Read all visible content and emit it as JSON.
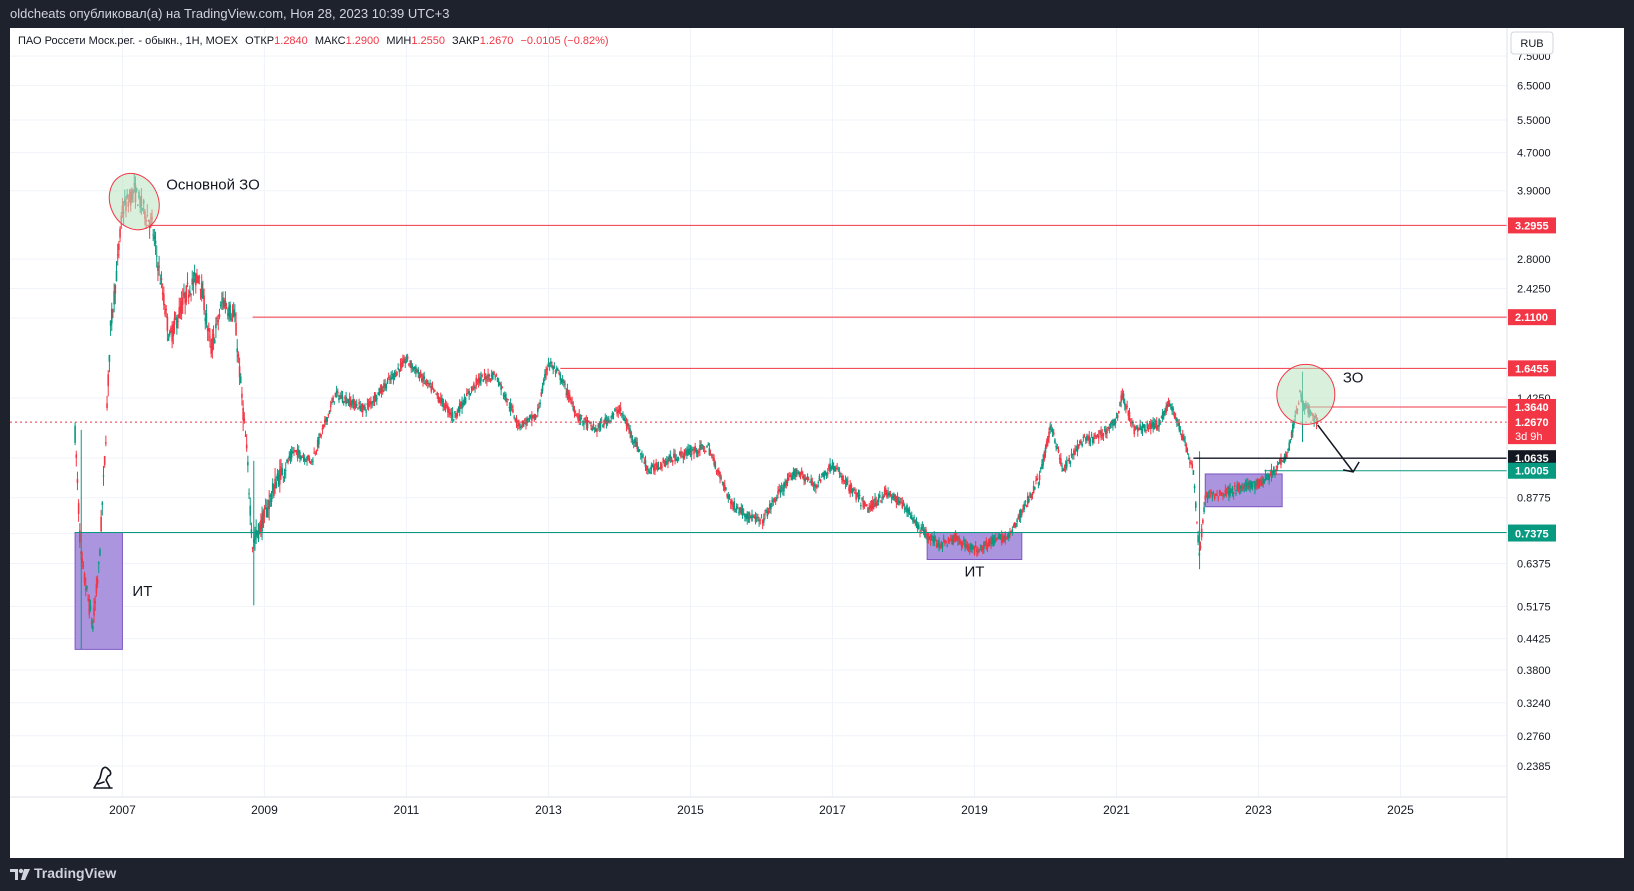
{
  "header": {
    "published": "oldcheats опубликовал(а) на TradingView.com, Ноя 28, 2023 10:39 UTC+3"
  },
  "legend": {
    "symbol": "ПАО Россети Моск.рег. - обыкн., 1Н, MOEX",
    "open_label": "ОТКР",
    "open": "1.2840",
    "high_label": "МАКС",
    "high": "1.2900",
    "low_label": "МИН",
    "low": "1.2550",
    "close_label": "ЗАКР",
    "close": "1.2670",
    "change": "−0.0105 (−0.82%)"
  },
  "currency": "RUB",
  "brand": "TradingView",
  "colors": {
    "resistance": "#f23645",
    "support": "#089981",
    "black_level": "#131722",
    "zone_fill": "#9c82d9",
    "ellipse_fill": "#b9e4c0",
    "candle_up": "#089981",
    "candle_down": "#f23645",
    "grid": "#f0f3fa"
  },
  "chart_data": {
    "type": "candlestick",
    "scale": "log",
    "x_range": [
      "2005-06",
      "2026-07"
    ],
    "y_range": [
      0.205,
      8.6
    ],
    "x_ticks": [
      {
        "label": "2007",
        "date": "2007-01"
      },
      {
        "label": "2009",
        "date": "2009-01"
      },
      {
        "label": "2011",
        "date": "2011-01"
      },
      {
        "label": "2013",
        "date": "2013-01"
      },
      {
        "label": "2015",
        "date": "2015-01"
      },
      {
        "label": "2017",
        "date": "2017-01"
      },
      {
        "label": "2019",
        "date": "2019-01"
      },
      {
        "label": "2021",
        "date": "2021-01"
      },
      {
        "label": "2023",
        "date": "2023-01"
      },
      {
        "label": "2025",
        "date": "2025-01"
      }
    ],
    "y_ticks": [
      "7.5000",
      "6.5000",
      "5.5000",
      "4.7000",
      "3.9000",
      "2.8000",
      "2.4250",
      "2.1000",
      "1.4250",
      "1.0635",
      "0.8775",
      "0.7375",
      "0.6375",
      "0.5175",
      "0.4425",
      "0.3800",
      "0.3240",
      "0.2760",
      "0.2385"
    ],
    "price_path": [
      [
        "2006-05",
        1.2
      ],
      [
        "2006-06",
        0.65
      ],
      [
        "2006-08",
        0.47
      ],
      [
        "2006-09",
        0.62
      ],
      [
        "2006-10",
        1.05
      ],
      [
        "2006-11",
        2.0
      ],
      [
        "2006-12",
        2.6
      ],
      [
        "2007-01",
        3.55
      ],
      [
        "2007-03",
        3.9
      ],
      [
        "2007-06",
        3.3
      ],
      [
        "2007-09",
        1.9
      ],
      [
        "2007-12",
        2.4
      ],
      [
        "2008-02",
        2.6
      ],
      [
        "2008-04",
        1.8
      ],
      [
        "2008-06",
        2.3
      ],
      [
        "2008-08",
        2.1
      ],
      [
        "2008-10",
        1.1
      ],
      [
        "2008-11",
        0.7
      ],
      [
        "2009-01",
        0.8
      ],
      [
        "2009-03",
        0.95
      ],
      [
        "2009-06",
        1.1
      ],
      [
        "2009-09",
        1.05
      ],
      [
        "2010-01",
        1.45
      ],
      [
        "2010-06",
        1.35
      ],
      [
        "2010-11",
        1.6
      ],
      [
        "2011-01",
        1.72
      ],
      [
        "2011-06",
        1.45
      ],
      [
        "2011-09",
        1.3
      ],
      [
        "2012-01",
        1.55
      ],
      [
        "2012-04",
        1.6
      ],
      [
        "2012-08",
        1.25
      ],
      [
        "2012-11",
        1.3
      ],
      [
        "2013-01",
        1.7
      ],
      [
        "2013-03",
        1.58
      ],
      [
        "2013-06",
        1.3
      ],
      [
        "2013-09",
        1.22
      ],
      [
        "2014-01",
        1.35
      ],
      [
        "2014-06",
        1.0
      ],
      [
        "2014-09",
        1.05
      ],
      [
        "2015-01",
        1.1
      ],
      [
        "2015-04",
        1.12
      ],
      [
        "2015-08",
        0.85
      ],
      [
        "2015-11",
        0.8
      ],
      [
        "2016-01",
        0.78
      ],
      [
        "2016-04",
        0.9
      ],
      [
        "2016-07",
        1.0
      ],
      [
        "2016-10",
        0.93
      ],
      [
        "2017-01",
        1.03
      ],
      [
        "2017-04",
        0.92
      ],
      [
        "2017-07",
        0.83
      ],
      [
        "2017-10",
        0.9
      ],
      [
        "2018-01",
        0.85
      ],
      [
        "2018-04",
        0.75
      ],
      [
        "2018-07",
        0.7
      ],
      [
        "2018-10",
        0.72
      ],
      [
        "2019-01",
        0.68
      ],
      [
        "2019-04",
        0.71
      ],
      [
        "2019-07",
        0.73
      ],
      [
        "2019-09",
        0.82
      ],
      [
        "2019-12",
        0.97
      ],
      [
        "2020-02",
        1.25
      ],
      [
        "2020-04",
        1.0
      ],
      [
        "2020-07",
        1.15
      ],
      [
        "2020-10",
        1.18
      ],
      [
        "2021-01",
        1.28
      ],
      [
        "2021-02",
        1.45
      ],
      [
        "2021-04",
        1.22
      ],
      [
        "2021-08",
        1.25
      ],
      [
        "2021-10",
        1.4
      ],
      [
        "2021-12",
        1.2
      ],
      [
        "2022-02",
        1.0
      ],
      [
        "2022-03",
        0.66
      ],
      [
        "2022-04",
        0.88
      ],
      [
        "2022-07",
        0.9
      ],
      [
        "2022-10",
        0.92
      ],
      [
        "2023-01",
        0.94
      ],
      [
        "2023-03",
        0.98
      ],
      [
        "2023-06",
        1.1
      ],
      [
        "2023-08",
        1.45
      ],
      [
        "2023-09",
        1.36
      ],
      [
        "2023-11",
        1.267
      ]
    ],
    "horizontal_levels": [
      {
        "value": 3.2955,
        "label": "3.2955",
        "color": "red",
        "from": "2007-05"
      },
      {
        "value": 2.11,
        "label": "2.1100",
        "color": "red",
        "from": "2008-11"
      },
      {
        "value": 1.6455,
        "label": "1.6455",
        "color": "red",
        "from": "2013-03"
      },
      {
        "value": 1.364,
        "label": "1.3640",
        "color": "red",
        "from": "2023-09"
      },
      {
        "value": 1.0635,
        "label": "1.0635",
        "color": "black",
        "from": "2022-02"
      },
      {
        "value": 1.0005,
        "label": "1.0005",
        "color": "green",
        "from": "2023-02"
      },
      {
        "value": 0.741,
        "label": "0.7410",
        "color": "green",
        "from": "2006-05"
      }
    ],
    "price_labels": [
      {
        "value": 0.7375,
        "label": "0.7375",
        "color": "green"
      },
      {
        "value": 1.267,
        "label": "1.2670",
        "sublabel": "3d 9h",
        "color": "red"
      }
    ],
    "current_price": 1.267,
    "zones": [
      {
        "label": "ИТ",
        "from": "2006-05",
        "to": "2007-01",
        "low": 0.42,
        "high": 0.741
      },
      {
        "label": "ИТ",
        "from": "2018-05",
        "to": "2019-09",
        "low": 0.65,
        "high": 0.741
      },
      {
        "label": "",
        "from": "2022-04",
        "to": "2023-05",
        "low": 0.84,
        "high": 0.985
      }
    ],
    "ellipses": [
      {
        "label": "Основной ЗО",
        "center": "2007-03",
        "value": 3.7
      },
      {
        "label": "ЗО",
        "center": "2023-09",
        "value": 1.45
      }
    ],
    "projection_arrow": {
      "from": [
        "2023-11",
        1.25
      ],
      "to": [
        "2024-05",
        0.995
      ]
    }
  }
}
